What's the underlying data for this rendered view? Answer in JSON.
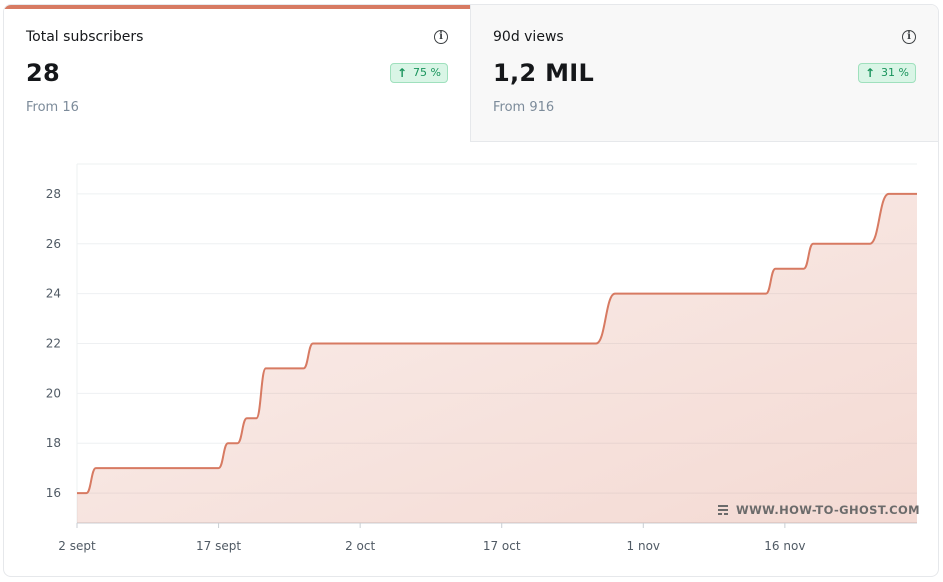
{
  "metrics": [
    {
      "label": "Total subscribers",
      "value": "28",
      "change": "75 %",
      "from": "From 16"
    },
    {
      "label": "90d views",
      "value": "1,2 MIL",
      "change": "31 %",
      "from": "From 916"
    }
  ],
  "icons": {
    "info": "info-icon",
    "trend": "arrow-up-icon",
    "watermark": "ghost-logo-icon"
  },
  "colors": {
    "accent": "#d77a62",
    "line": "#d77a62",
    "badge_text": "#18935b",
    "badge_bg": "#d9f5e6"
  },
  "watermark": "WWW.HOW-TO-GHOST.COM",
  "chart_data": {
    "type": "area",
    "title": "",
    "xlabel": "",
    "ylabel": "",
    "x_ticks": [
      "2 sept",
      "17 sept",
      "2 oct",
      "17 oct",
      "1 nov",
      "16 nov"
    ],
    "y_ticks": [
      16,
      18,
      20,
      22,
      24,
      26,
      28
    ],
    "ylim": [
      14.8,
      29.2
    ],
    "grid": true,
    "series": [
      {
        "points": [
          [
            "2 sept",
            16
          ],
          [
            "3 sept",
            16
          ],
          [
            "4 sept",
            17
          ],
          [
            "17 sept",
            17
          ],
          [
            "18 sept",
            18
          ],
          [
            "19 sept",
            18
          ],
          [
            "20 sept",
            19
          ],
          [
            "21 sept",
            19
          ],
          [
            "22 sept",
            21
          ],
          [
            "26 sept",
            21
          ],
          [
            "27 sept",
            22
          ],
          [
            "27 oct",
            22
          ],
          [
            "29 oct",
            24
          ],
          [
            "14 nov",
            24
          ],
          [
            "15 nov",
            25
          ],
          [
            "18 nov",
            25
          ],
          [
            "19 nov",
            26
          ],
          [
            "25 nov",
            26
          ],
          [
            "27 nov",
            28
          ],
          [
            "30 nov",
            28
          ]
        ]
      }
    ]
  }
}
